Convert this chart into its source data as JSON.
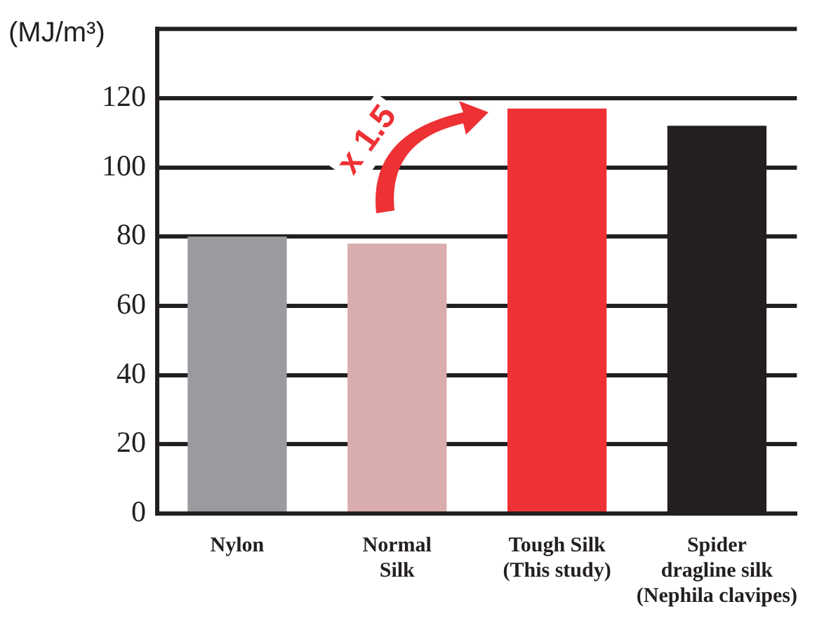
{
  "chart_data": {
    "type": "bar",
    "ylabel": "(MJ/m³)",
    "categories": [
      "Nylon",
      "Normal\nSilk",
      "Tough Silk\n(This study)",
      "Spider\ndragline silk\n(Nephila clavipes)"
    ],
    "values": [
      80,
      78,
      117,
      112
    ],
    "colors": [
      "#9a9b9f",
      "#d9acae",
      "#ee3134",
      "#231f20"
    ],
    "ylim": [
      0,
      140
    ],
    "yticks": [
      0,
      20,
      40,
      60,
      80,
      100,
      120
    ],
    "grid": "y",
    "legend": false,
    "annotations": [
      "x 1.5"
    ]
  }
}
